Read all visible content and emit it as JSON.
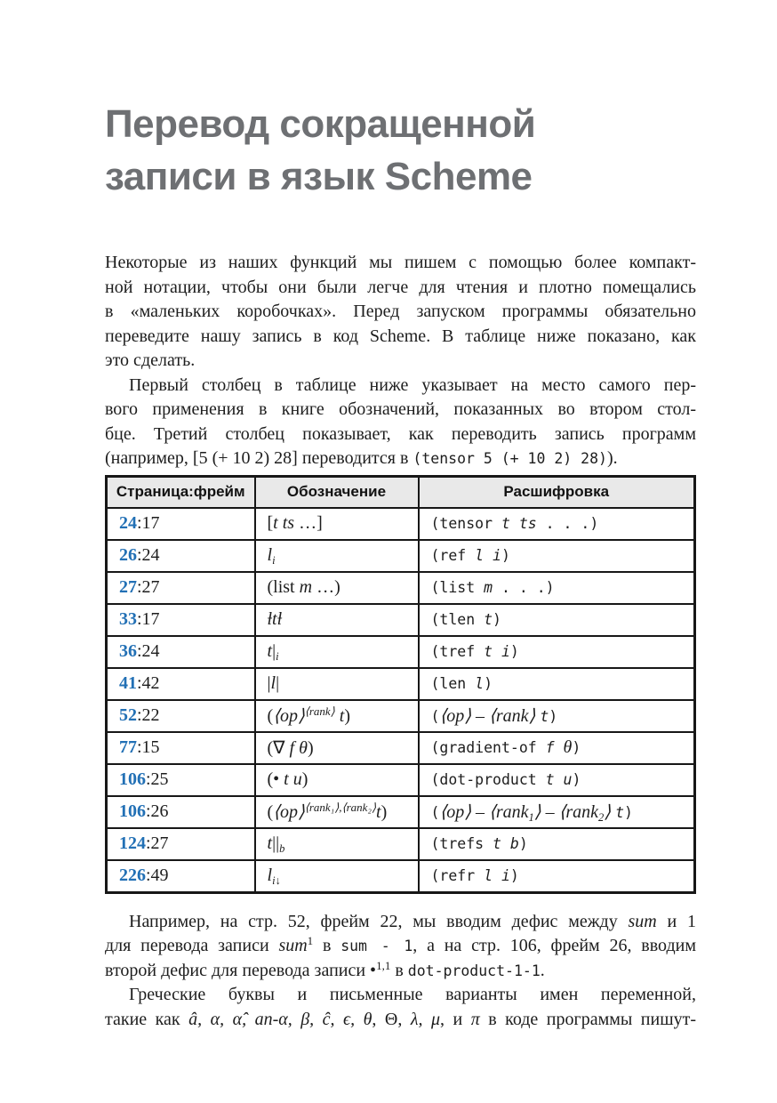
{
  "title": {
    "line1": "Перевод сокращенной",
    "line2": "записи в язык Scheme"
  },
  "paragraphs_top": [
    {
      "lines": [
        {
          "j": true,
          "ind": false,
          "runs": [
            {
              "t": "Некоторые из наших функций мы пишем с помощью более компакт-",
              "s": "p"
            }
          ]
        },
        {
          "j": true,
          "ind": false,
          "runs": [
            {
              "t": "ной нотации, чтобы они были легче для чтения и плотно помещались",
              "s": "p"
            }
          ]
        },
        {
          "j": true,
          "ind": false,
          "runs": [
            {
              "t": "в «маленьких коробочках». Перед запуском программы обязательно",
              "s": "p"
            }
          ]
        },
        {
          "j": true,
          "ind": false,
          "runs": [
            {
              "t": "переведите нашу запись в код Scheme. В таблице ниже показано, как",
              "s": "p"
            }
          ]
        },
        {
          "j": false,
          "ind": false,
          "runs": [
            {
              "t": "это сделать.",
              "s": "p"
            }
          ]
        }
      ]
    },
    {
      "lines": [
        {
          "j": true,
          "ind": true,
          "runs": [
            {
              "t": "Первый столбец в таблице ниже указывает на место самого пер-",
              "s": "p"
            }
          ]
        },
        {
          "j": true,
          "ind": false,
          "runs": [
            {
              "t": "вого применения в книге обозначений, показанных во втором стол-",
              "s": "p"
            }
          ]
        },
        {
          "j": true,
          "ind": false,
          "runs": [
            {
              "t": "бце. Третий столбец показывает, как переводить запись программ",
              "s": "p"
            }
          ]
        },
        {
          "j": false,
          "ind": false,
          "runs": [
            {
              "t": "(например, [5 (+ 10 2) 28] переводится в ",
              "s": "p"
            },
            {
              "t": "(tensor 5 (+ 10 2) 28)",
              "s": "m"
            },
            {
              "t": ").",
              "s": "p"
            }
          ]
        }
      ]
    }
  ],
  "paragraphs_bottom": [
    {
      "lines": [
        {
          "j": true,
          "ind": true,
          "runs": [
            {
              "t": "Например, на стр. 52, фрейм 22, мы вводим дефис между ",
              "s": "p"
            },
            {
              "t": "sum",
              "s": "i"
            },
            {
              "t": " и 1",
              "s": "p"
            }
          ]
        },
        {
          "j": true,
          "ind": false,
          "runs": [
            {
              "t": "для перевода записи ",
              "s": "p"
            },
            {
              "t": "sum",
              "s": "i"
            },
            {
              "t": "1",
              "s": "sup"
            },
            {
              "t": " в ",
              "s": "p"
            },
            {
              "t": "sum - 1",
              "s": "m"
            },
            {
              "t": ", а на стр. 106, фрейм 26, вводим",
              "s": "p"
            }
          ]
        },
        {
          "j": false,
          "ind": false,
          "runs": [
            {
              "t": "второй дефис для перевода записи •",
              "s": "p"
            },
            {
              "t": "1,1",
              "s": "sup"
            },
            {
              "t": " в ",
              "s": "p"
            },
            {
              "t": "dot-product-1-1",
              "s": "m"
            },
            {
              "t": ".",
              "s": "p"
            }
          ]
        }
      ]
    },
    {
      "lines": [
        {
          "j": true,
          "ind": true,
          "runs": [
            {
              "t": "Греческие буквы и письменные варианты имен переменной,",
              "s": "p"
            }
          ]
        },
        {
          "j": true,
          "ind": false,
          "runs": [
            {
              "t": "такие как ",
              "s": "p"
            },
            {
              "t": "â, α, α̂, an-α, β, ĉ, ϵ, θ",
              "s": "i"
            },
            {
              "t": ", Θ, ",
              "s": "p"
            },
            {
              "t": "λ, μ",
              "s": "i"
            },
            {
              "t": ", и ",
              "s": "p"
            },
            {
              "t": "π",
              "s": "i"
            },
            {
              "t": " в коде программы пишут-",
              "s": "p"
            }
          ]
        }
      ]
    }
  ],
  "table": {
    "headers": [
      "Страница:фрейм",
      "Обозначение",
      "Расшифровка"
    ],
    "rows": [
      {
        "page": "24",
        "frame": ":17",
        "notation": [
          {
            "t": "[",
            "s": "p"
          },
          {
            "t": "t ts",
            "s": "i"
          },
          {
            "t": " …]",
            "s": "p"
          }
        ],
        "code": [
          {
            "t": "(tensor ",
            "s": "m"
          },
          {
            "t": "t ts",
            "s": "mi"
          },
          {
            "t": " . . .)",
            "s": "m"
          }
        ]
      },
      {
        "page": "26",
        "frame": ":24",
        "notation": [
          {
            "t": "l",
            "s": "i"
          },
          {
            "t": "i",
            "s": "sub"
          }
        ],
        "code": [
          {
            "t": "(ref ",
            "s": "m"
          },
          {
            "t": "l i",
            "s": "mi"
          },
          {
            "t": ")",
            "s": "m"
          }
        ]
      },
      {
        "page": "27",
        "frame": ":27",
        "notation": [
          {
            "t": "(list ",
            "s": "p"
          },
          {
            "t": "m",
            "s": "i"
          },
          {
            "t": " …)",
            "s": "p"
          }
        ],
        "code": [
          {
            "t": "(list ",
            "s": "m"
          },
          {
            "t": "m",
            "s": "mi"
          },
          {
            "t": " . . .)",
            "s": "m"
          }
        ]
      },
      {
        "page": "33",
        "frame": ":17",
        "notation": [
          {
            "t": "ƚtƚ",
            "s": "i"
          }
        ],
        "code": [
          {
            "t": "(tlen ",
            "s": "m"
          },
          {
            "t": "t",
            "s": "mi"
          },
          {
            "t": ")",
            "s": "m"
          }
        ]
      },
      {
        "page": "36",
        "frame": ":24",
        "notation": [
          {
            "t": "t",
            "s": "i"
          },
          {
            "t": "|",
            "s": "p"
          },
          {
            "t": "i",
            "s": "sub"
          }
        ],
        "code": [
          {
            "t": "(tref ",
            "s": "m"
          },
          {
            "t": "t i",
            "s": "mi"
          },
          {
            "t": ")",
            "s": "m"
          }
        ]
      },
      {
        "page": "41",
        "frame": ":42",
        "notation": [
          {
            "t": "|",
            "s": "p"
          },
          {
            "t": "l",
            "s": "i"
          },
          {
            "t": "|",
            "s": "p"
          }
        ],
        "code": [
          {
            "t": "(len ",
            "s": "m"
          },
          {
            "t": "l",
            "s": "mi"
          },
          {
            "t": ")",
            "s": "m"
          }
        ]
      },
      {
        "page": "52",
        "frame": ":22",
        "notation": [
          {
            "t": "(",
            "s": "p"
          },
          {
            "t": "⟨op⟩",
            "s": "i"
          },
          {
            "t": "⟨rank⟩",
            "s": "supi"
          },
          {
            "t": " t",
            "s": "i"
          },
          {
            "t": ")",
            "s": "p"
          }
        ],
        "code": [
          {
            "t": "(",
            "s": "m"
          },
          {
            "t": "⟨op⟩ – ⟨rank⟩ ",
            "s": "i"
          },
          {
            "t": "t",
            "s": "mi"
          },
          {
            "t": ")",
            "s": "m"
          }
        ]
      },
      {
        "page": "77",
        "frame": ":15",
        "notation": [
          {
            "t": "(∇ ",
            "s": "p"
          },
          {
            "t": "f θ",
            "s": "i"
          },
          {
            "t": ")",
            "s": "p"
          }
        ],
        "code": [
          {
            "t": "(gradient-of ",
            "s": "m"
          },
          {
            "t": "f",
            "s": "mi"
          },
          {
            "t": " ",
            "s": "m"
          },
          {
            "t": "θ",
            "s": "i"
          },
          {
            "t": ")",
            "s": "m"
          }
        ]
      },
      {
        "page": "106",
        "frame": ":25",
        "notation": [
          {
            "t": "(• ",
            "s": "p"
          },
          {
            "t": "t u",
            "s": "i"
          },
          {
            "t": ")",
            "s": "p"
          }
        ],
        "code": [
          {
            "t": "(dot-product ",
            "s": "m"
          },
          {
            "t": "t u",
            "s": "mi"
          },
          {
            "t": ")",
            "s": "m"
          }
        ]
      },
      {
        "page": "106",
        "frame": ":26",
        "notation": [
          {
            "t": "(",
            "s": "p"
          },
          {
            "t": "⟨op⟩",
            "s": "i"
          },
          {
            "t": "⟨rank₁⟩,⟨rank₂⟩",
            "s": "supi"
          },
          {
            "t": "t",
            "s": "i"
          },
          {
            "t": ")",
            "s": "p"
          }
        ],
        "code": [
          {
            "t": "(",
            "s": "m"
          },
          {
            "t": "⟨op⟩ – ⟨rank",
            "s": "i"
          },
          {
            "t": "1",
            "s": "sub"
          },
          {
            "t": "⟩ – ⟨rank",
            "s": "i"
          },
          {
            "t": "2",
            "s": "sub"
          },
          {
            "t": "⟩ ",
            "s": "i"
          },
          {
            "t": "t",
            "s": "mi"
          },
          {
            "t": ")",
            "s": "m"
          }
        ]
      },
      {
        "page": "124",
        "frame": ":27",
        "notation": [
          {
            "t": "t",
            "s": "i"
          },
          {
            "t": "||",
            "s": "p"
          },
          {
            "t": "b",
            "s": "sub"
          }
        ],
        "code": [
          {
            "t": "(trefs ",
            "s": "m"
          },
          {
            "t": "t b",
            "s": "mi"
          },
          {
            "t": ")",
            "s": "m"
          }
        ]
      },
      {
        "page": "226",
        "frame": ":49",
        "notation": [
          {
            "t": "l",
            "s": "i"
          },
          {
            "t": "i↓",
            "s": "sub"
          }
        ],
        "code": [
          {
            "t": "(refr ",
            "s": "m"
          },
          {
            "t": "l i",
            "s": "mi"
          },
          {
            "t": ")",
            "s": "m"
          }
        ]
      }
    ]
  }
}
